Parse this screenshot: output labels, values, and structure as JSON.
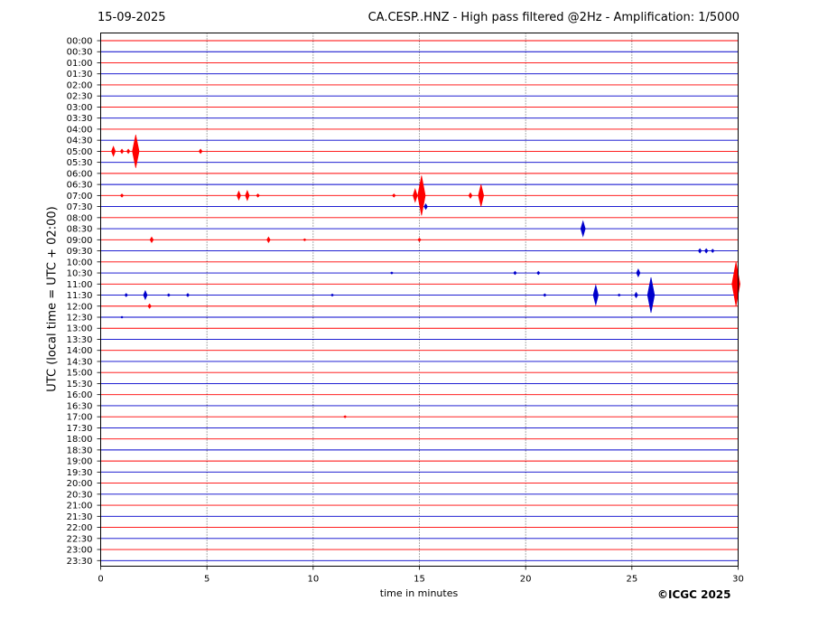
{
  "header": {
    "date": "15-09-2025",
    "title": "CA.CESP..HNZ - High pass filtered @2Hz - Amplification: 1/5000"
  },
  "footer": {
    "copyright": "©ICGC 2025"
  },
  "colors": {
    "trace_red": "#ff0000",
    "trace_blue": "#0000cc",
    "grid": "#333333"
  },
  "chart_data": {
    "type": "line",
    "title": "CA.CESP..HNZ - High pass filtered @2Hz - Amplification: 1/5000",
    "xlabel": "time in minutes",
    "ylabel": "UTC (local time = UTC + 02:00)",
    "xlim": [
      0,
      30
    ],
    "x_ticks": [
      0,
      5,
      10,
      15,
      20,
      25,
      30
    ],
    "grid": "vertical dotted lines at 5-minute intervals",
    "rows": [
      "00:00",
      "00:30",
      "01:00",
      "01:30",
      "02:00",
      "02:30",
      "03:00",
      "03:30",
      "04:00",
      "04:30",
      "05:00",
      "05:30",
      "06:00",
      "06:30",
      "07:00",
      "07:30",
      "08:00",
      "08:30",
      "09:00",
      "09:30",
      "10:00",
      "10:30",
      "11:00",
      "11:30",
      "12:00",
      "12:30",
      "13:00",
      "13:30",
      "14:00",
      "14:30",
      "15:00",
      "15:30",
      "16:00",
      "16:30",
      "17:00",
      "17:30",
      "18:00",
      "18:30",
      "19:00",
      "19:30",
      "20:00",
      "20:30",
      "21:00",
      "21:30",
      "22:00",
      "22:30",
      "23:00",
      "23:30"
    ],
    "row_colors": "alternating red (even rows) and blue (odd rows)",
    "events": [
      {
        "row": "05:00",
        "minute": 0.6,
        "amplitude": 0.45
      },
      {
        "row": "05:00",
        "minute": 1.0,
        "amplitude": 0.2
      },
      {
        "row": "05:00",
        "minute": 1.3,
        "amplitude": 0.2
      },
      {
        "row": "05:00",
        "minute": 1.65,
        "amplitude": 1.5
      },
      {
        "row": "05:00",
        "minute": 4.7,
        "amplitude": 0.2
      },
      {
        "row": "07:00",
        "minute": 1.0,
        "amplitude": 0.15
      },
      {
        "row": "07:00",
        "minute": 6.5,
        "amplitude": 0.4
      },
      {
        "row": "07:00",
        "minute": 6.9,
        "amplitude": 0.45
      },
      {
        "row": "07:00",
        "minute": 7.4,
        "amplitude": 0.15
      },
      {
        "row": "07:00",
        "minute": 13.8,
        "amplitude": 0.15
      },
      {
        "row": "07:00",
        "minute": 14.8,
        "amplitude": 0.6
      },
      {
        "row": "07:00",
        "minute": 15.1,
        "amplitude": 1.8
      },
      {
        "row": "07:00",
        "minute": 17.4,
        "amplitude": 0.25
      },
      {
        "row": "07:00",
        "minute": 17.9,
        "amplitude": 1.0
      },
      {
        "row": "07:30",
        "minute": 15.3,
        "amplitude": 0.25
      },
      {
        "row": "08:30",
        "minute": 22.7,
        "amplitude": 0.7
      },
      {
        "row": "09:00",
        "minute": 2.4,
        "amplitude": 0.25
      },
      {
        "row": "09:00",
        "minute": 7.9,
        "amplitude": 0.25
      },
      {
        "row": "09:00",
        "minute": 9.6,
        "amplitude": 0.1
      },
      {
        "row": "09:00",
        "minute": 15.0,
        "amplitude": 0.15
      },
      {
        "row": "09:30",
        "minute": 28.2,
        "amplitude": 0.2
      },
      {
        "row": "09:30",
        "minute": 28.5,
        "amplitude": 0.2
      },
      {
        "row": "09:30",
        "minute": 28.8,
        "amplitude": 0.15
      },
      {
        "row": "10:30",
        "minute": 13.7,
        "amplitude": 0.1
      },
      {
        "row": "10:30",
        "minute": 19.5,
        "amplitude": 0.15
      },
      {
        "row": "10:30",
        "minute": 20.6,
        "amplitude": 0.15
      },
      {
        "row": "10:30",
        "minute": 25.3,
        "amplitude": 0.35
      },
      {
        "row": "11:00",
        "minute": 29.9,
        "amplitude": 2.0
      },
      {
        "row": "11:30",
        "minute": 1.2,
        "amplitude": 0.15
      },
      {
        "row": "11:30",
        "minute": 2.1,
        "amplitude": 0.4
      },
      {
        "row": "11:30",
        "minute": 3.2,
        "amplitude": 0.12
      },
      {
        "row": "11:30",
        "minute": 4.1,
        "amplitude": 0.15
      },
      {
        "row": "11:30",
        "minute": 10.9,
        "amplitude": 0.1
      },
      {
        "row": "11:30",
        "minute": 20.9,
        "amplitude": 0.12
      },
      {
        "row": "11:30",
        "minute": 23.3,
        "amplitude": 0.9
      },
      {
        "row": "11:30",
        "minute": 24.4,
        "amplitude": 0.1
      },
      {
        "row": "11:30",
        "minute": 25.2,
        "amplitude": 0.25
      },
      {
        "row": "11:30",
        "minute": 25.9,
        "amplitude": 1.6
      },
      {
        "row": "12:00",
        "minute": 2.3,
        "amplitude": 0.2
      },
      {
        "row": "12:30",
        "minute": 1.0,
        "amplitude": 0.08
      },
      {
        "row": "17:00",
        "minute": 11.5,
        "amplitude": 0.1
      }
    ]
  }
}
